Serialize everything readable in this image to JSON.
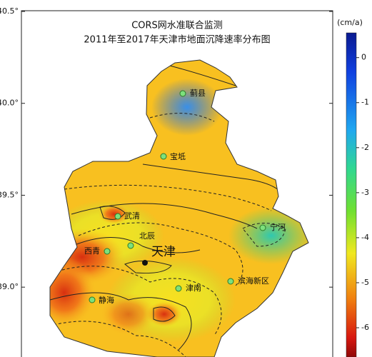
{
  "title": [
    "CORS网水准联合监测",
    "2011年至2017年天津市地面沉降速率分布图"
  ],
  "latitude_axis": {
    "lim": [
      38.62,
      40.5
    ],
    "ticks": [
      {
        "value": 40.5,
        "label": "40.5°"
      },
      {
        "value": 40.0,
        "label": "40.0°"
      },
      {
        "value": 39.5,
        "label": "39.5°"
      },
      {
        "value": 39.0,
        "label": "39.0°"
      }
    ]
  },
  "colorbar": {
    "unit": "(cm/a)",
    "lim": [
      -6.65,
      0.55
    ],
    "ticks": [
      0,
      -1,
      -2,
      -3,
      -4,
      -5,
      -6
    ]
  },
  "places": [
    {
      "label": "蓟县"
    },
    {
      "label": "宝坻"
    },
    {
      "label": "武清"
    },
    {
      "label": "北辰"
    },
    {
      "label": "天津"
    },
    {
      "label": "宁河"
    },
    {
      "label": "西青"
    },
    {
      "label": "滨海新区"
    },
    {
      "label": "津南"
    },
    {
      "label": "静海"
    }
  ]
}
